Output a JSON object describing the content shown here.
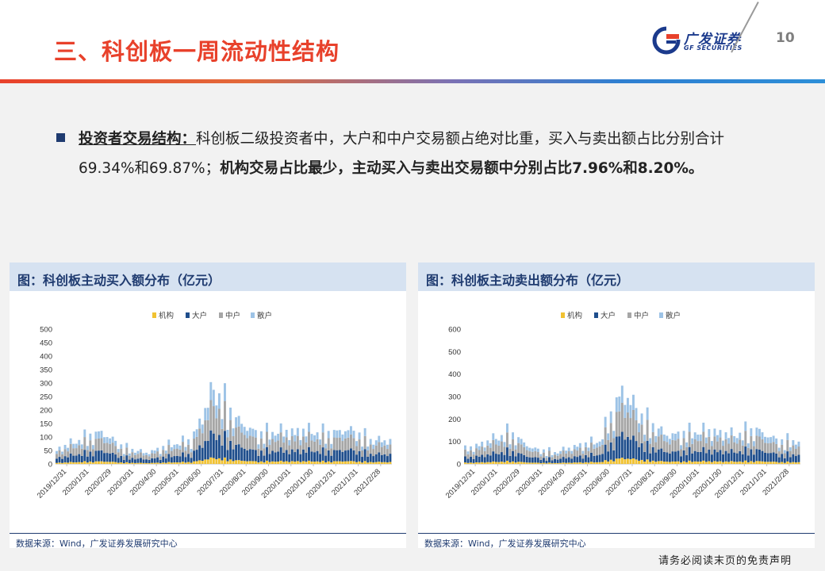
{
  "header": {
    "title": "三、科创板一周流动性结构",
    "logo_cn": "广发证券",
    "logo_en": "GF SECURITIES",
    "page_number": "10"
  },
  "body": {
    "heading": "投资者交易结构：",
    "text_normal": "科创板二级投资者中，大户和中户交易额占绝对比重，买入与卖出额占比分别合计69.34%和69.87%；",
    "text_bold": "机构交易占比最少，主动买入与卖出交易额中分别占比7.96%和8.20%。"
  },
  "colors": {
    "institution": "#f1c232",
    "large": "#1f4e8c",
    "medium": "#a6a6a6",
    "retail": "#9dc3e6",
    "title_red": "#e8412b",
    "navy": "#1f3b70"
  },
  "charts": [
    {
      "panel_title": "图：科创板主动买入额分布（亿元）",
      "source": "数据来源：Wind，广发证券发展研究中心"
    },
    {
      "panel_title": "图：科创板主动卖出额分布（亿元）",
      "source": "数据来源：Wind，广发证券发展研究中心"
    }
  ],
  "chart_data": [
    {
      "type": "bar",
      "stacked": true,
      "title": "科创板主动买入额分布（亿元）",
      "legend": [
        "机构",
        "大户",
        "中户",
        "散户"
      ],
      "legend_position": "top",
      "ylim": [
        0,
        500
      ],
      "yticks": [
        0,
        50,
        100,
        150,
        200,
        250,
        300,
        350,
        400,
        450,
        500
      ],
      "xticks": [
        "2019/12/31",
        "2020/1/31",
        "2020/2/29",
        "2020/3/31",
        "2020/4/30",
        "2020/5/31",
        "2020/6/30",
        "2020/7/31",
        "2020/8/31",
        "2020/9/30",
        "2020/10/31",
        "2020/11/30",
        "2020/12/31",
        "2021/1/31",
        "2021/2/28"
      ],
      "approx_period_totals": [
        60,
        95,
        130,
        65,
        45,
        75,
        95,
        300,
        180,
        120,
        130,
        135,
        120,
        140,
        95
      ]
    },
    {
      "type": "bar",
      "stacked": true,
      "title": "科创板主动卖出额分布（亿元）",
      "legend": [
        "机构",
        "大户",
        "中户",
        "散户"
      ],
      "legend_position": "top",
      "ylim": [
        0,
        600
      ],
      "yticks": [
        0,
        100,
        200,
        300,
        400,
        500,
        600
      ],
      "xticks": [
        "2019/12/31",
        "2020/1/31",
        "2020/2/29",
        "2020/3/31",
        "2020/4/30",
        "2020/5/31",
        "2020/6/30",
        "2020/7/31",
        "2020/8/31",
        "2020/9/30",
        "2020/10/31",
        "2020/11/30",
        "2020/12/31",
        "2021/1/31",
        "2021/2/28"
      ],
      "approx_period_totals": [
        70,
        110,
        150,
        75,
        55,
        90,
        110,
        360,
        210,
        140,
        150,
        160,
        140,
        165,
        110
      ]
    }
  ],
  "footer": {
    "disclaimer": "请务必阅读末页的免责声明"
  }
}
